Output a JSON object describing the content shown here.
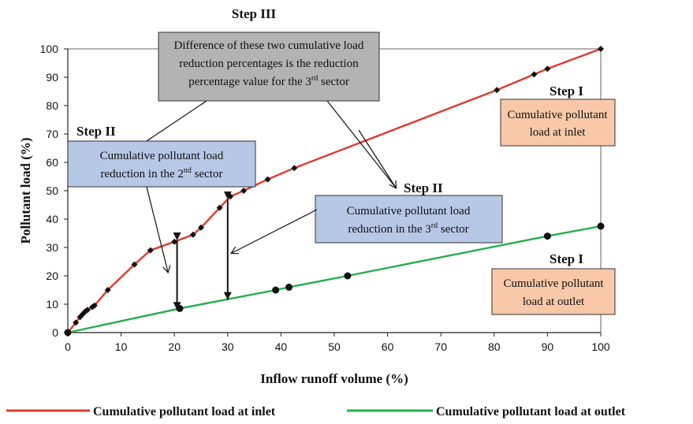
{
  "chart_data": {
    "type": "line",
    "xlabel": "Inflow runoff volume (%)",
    "ylabel": "Pollutant load (%)",
    "xlim": [
      0,
      100
    ],
    "ylim": [
      0,
      100
    ],
    "x_ticks": [
      "0",
      "10",
      "20",
      "30",
      "40",
      "50",
      "60",
      "70",
      "80",
      "90",
      "100"
    ],
    "y_ticks": [
      "0",
      "10",
      "20",
      "30",
      "40",
      "50",
      "60",
      "70",
      "80",
      "90",
      "100"
    ],
    "grid": false,
    "legend_position": "bottom",
    "series": [
      {
        "name": "Cumulative pollutant load at inlet",
        "color": "#e03a2a",
        "marker": "diamond",
        "x": [
          0,
          1.5,
          2.3,
          2.8,
          3.3,
          3.7,
          4.6,
          5.0,
          7.5,
          12.5,
          15.5,
          20.0,
          23.5,
          25.0,
          28.5,
          30.5,
          33.0,
          37.5,
          42.5,
          80.5,
          87.5,
          90.0,
          100
        ],
        "y": [
          0,
          3.5,
          5.5,
          6.5,
          7.5,
          8.0,
          9.0,
          9.5,
          15.0,
          24.0,
          29.0,
          32.0,
          34.5,
          37.0,
          44.0,
          48.0,
          50.0,
          54.0,
          58.0,
          85.5,
          91.0,
          93.0,
          100
        ]
      },
      {
        "name": "Cumulative pollutant load at outlet",
        "color": "#22b04a",
        "marker": "circle",
        "x": [
          0,
          21.0,
          39.0,
          41.5,
          52.5,
          90.0,
          100
        ],
        "y": [
          0,
          8.5,
          15.0,
          16.0,
          20.0,
          34.0,
          37.5
        ]
      }
    ],
    "annotations": {
      "step3": {
        "title": "Step III",
        "lines": [
          "Difference of these two cumulative load",
          "reduction percentages is the reduction",
          "percentage value for the 3",
          "rd",
          " sector"
        ]
      },
      "step2_left": {
        "title": "Step II",
        "line1": "Cumulative pollutant load",
        "line2_pre": "reduction in the 2",
        "line2_sup": "nd",
        "line2_post": " sector"
      },
      "step2_right": {
        "title": "Step II",
        "line1": "Cumulative pollutant load",
        "line2_pre": "reduction in the 3",
        "line2_sup": "rd",
        "line2_post": " sector"
      },
      "step1_inlet": {
        "title": "Step I",
        "line1": "Cumulative pollutant",
        "line2": "load at inlet"
      },
      "step1_outlet": {
        "title": "Step I",
        "line1": "Cumulative pollutant",
        "line2": "load at outlet"
      }
    },
    "colors": {
      "gray_box": "#b3b3b3",
      "blue_box": "#b7c7e6",
      "peach_box": "#f8c8a8"
    }
  }
}
